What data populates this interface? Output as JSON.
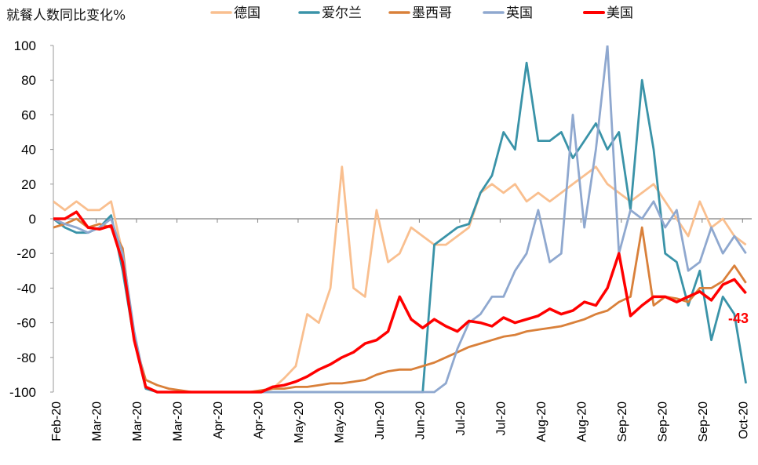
{
  "chart_data": {
    "type": "line",
    "title": "就餐人数同比变化%",
    "xlabel": "",
    "ylabel": "",
    "ylim": [
      -100,
      100
    ],
    "yticks": [
      "100",
      "80",
      "60",
      "40",
      "20",
      "0",
      "-20",
      "-40",
      "-60",
      "-80",
      "-100"
    ],
    "ytick_values": [
      100,
      80,
      60,
      40,
      20,
      0,
      -20,
      -40,
      -60,
      -80,
      -100
    ],
    "xtick_labels": [
      "Feb-20",
      "Mar-20",
      "Mar-20",
      "Mar-20",
      "Apr-20",
      "Apr-20",
      "May-20",
      "May-20",
      "Jun-20",
      "Jun-20",
      "Jul-20",
      "Jul-20",
      "Aug-20",
      "Aug-20",
      "Sep-20",
      "Sep-20",
      "Sep-20",
      "Oct-20"
    ],
    "xtick_days": [
      0,
      14,
      28,
      42,
      56,
      70,
      84,
      98,
      112,
      126,
      140,
      154,
      168,
      182,
      196,
      210,
      224,
      238
    ],
    "x_unit": "days since first tick",
    "x": [
      0,
      4,
      8,
      12,
      16,
      20,
      24,
      28,
      32,
      36,
      40,
      44,
      48,
      52,
      56,
      60,
      64,
      68,
      72,
      76,
      80,
      84,
      88,
      92,
      96,
      100,
      104,
      108,
      112,
      116,
      120,
      124,
      128,
      132,
      136,
      140,
      144,
      148,
      152,
      156,
      160,
      164,
      168,
      172,
      176,
      180,
      184,
      188,
      192,
      196,
      200,
      204,
      208,
      212,
      216,
      220,
      224,
      228,
      232,
      236,
      240
    ],
    "xlim": [
      0,
      242
    ],
    "legend_position": "top",
    "series": [
      {
        "name": "德国",
        "color": "#F9BF8F",
        "values": [
          10,
          5,
          10,
          5,
          5,
          10,
          -20,
          -70,
          -97,
          -100,
          -100,
          -100,
          -100,
          -100,
          -100,
          -100,
          -100,
          -100,
          -100,
          -98,
          -92,
          -85,
          -55,
          -60,
          -40,
          30,
          -40,
          -45,
          5,
          -25,
          -20,
          -5,
          -10,
          -15,
          -15,
          -10,
          -5,
          15,
          20,
          15,
          20,
          10,
          15,
          10,
          15,
          20,
          25,
          30,
          20,
          15,
          10,
          15,
          20,
          10,
          0,
          -10,
          10,
          -5,
          0,
          -10,
          -15
        ]
      },
      {
        "name": "爱尔兰",
        "color": "#3A93A8",
        "values": [
          0,
          -5,
          -8,
          -8,
          -5,
          2,
          -30,
          -70,
          -98,
          -100,
          -100,
          -100,
          -100,
          -100,
          -100,
          -100,
          -100,
          -100,
          -100,
          -100,
          -100,
          -100,
          -100,
          -100,
          -100,
          -100,
          -100,
          -100,
          -100,
          -100,
          -100,
          -100,
          -100,
          -15,
          -10,
          -5,
          -3,
          15,
          25,
          50,
          40,
          90,
          45,
          45,
          50,
          35,
          45,
          55,
          40,
          50,
          5,
          80,
          40,
          -20,
          -25,
          -50,
          -30,
          -70,
          -45,
          -55,
          -95
        ]
      },
      {
        "name": "墨西哥",
        "color": "#D9803A",
        "values": [
          -5,
          -3,
          0,
          -5,
          -3,
          -5,
          -17,
          -70,
          -93,
          -96,
          -98,
          -99,
          -100,
          -100,
          -100,
          -100,
          -100,
          -100,
          -99,
          -98,
          -98,
          -97,
          -97,
          -96,
          -95,
          -95,
          -94,
          -93,
          -90,
          -88,
          -87,
          -87,
          -85,
          -83,
          -80,
          -77,
          -74,
          -72,
          -70,
          -68,
          -67,
          -65,
          -64,
          -63,
          -62,
          -60,
          -58,
          -55,
          -53,
          -48,
          -45,
          -5,
          -50,
          -45,
          -46,
          -48,
          -40,
          -40,
          -36,
          -27,
          -37
        ]
      },
      {
        "name": "英国",
        "color": "#8FA8CF",
        "values": [
          0,
          -3,
          -5,
          -8,
          -5,
          0,
          -20,
          -65,
          -97,
          -100,
          -100,
          -100,
          -100,
          -100,
          -100,
          -100,
          -100,
          -100,
          -100,
          -100,
          -100,
          -100,
          -100,
          -100,
          -100,
          -100,
          -100,
          -100,
          -100,
          -100,
          -100,
          -100,
          -100,
          -100,
          -95,
          -75,
          -60,
          -55,
          -45,
          -45,
          -30,
          -20,
          5,
          -25,
          -20,
          60,
          -5,
          40,
          100,
          -20,
          5,
          0,
          10,
          -5,
          5,
          -30,
          -25,
          -5,
          -20,
          -10,
          -20
        ]
      },
      {
        "name": "美国",
        "color": "#FF0000",
        "values": [
          0,
          0,
          4,
          -5,
          -6,
          -4,
          -25,
          -70,
          -97,
          -100,
          -100,
          -100,
          -100,
          -100,
          -100,
          -100,
          -100,
          -100,
          -100,
          -97,
          -96,
          -94,
          -91,
          -87,
          -84,
          -80,
          -77,
          -72,
          -70,
          -65,
          -45,
          -58,
          -63,
          -58,
          -62,
          -65,
          -59,
          -60,
          -62,
          -57,
          -60,
          -58,
          -56,
          -52,
          -55,
          -53,
          -48,
          -50,
          -40,
          -20,
          -56,
          -50,
          -45,
          -45,
          -48,
          -45,
          -42,
          -47,
          -38,
          -35,
          -43
        ]
      }
    ],
    "annotations": [
      {
        "text": "-43",
        "series": "美国",
        "at": "last"
      }
    ]
  }
}
